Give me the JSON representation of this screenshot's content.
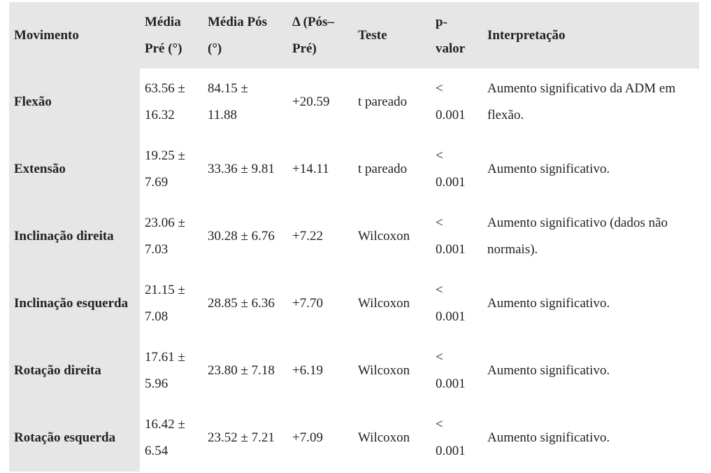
{
  "table": {
    "header": [
      "Movimento",
      "Média Pré (°)",
      "Média Pós (°)",
      "Δ (Pós–Pré)",
      "Teste",
      "p-valor",
      "Interpretação"
    ],
    "rows": [
      [
        "Flexão",
        "63.56 ± 16.32",
        "84.15 ± 11.88",
        "+20.59",
        "t pareado",
        "< 0.001",
        "Aumento significativo da ADM em flexão."
      ],
      [
        "Extensão",
        "19.25 ± 7.69",
        "33.36 ± 9.81",
        "+14.11",
        "t pareado",
        "< 0.001",
        "Aumento significativo."
      ],
      [
        "Inclinação direita",
        "23.06 ± 7.03",
        "30.28 ± 6.76",
        "+7.22",
        "Wilcoxon",
        "< 0.001",
        "Aumento significativo (dados não normais)."
      ],
      [
        "Inclinação esquerda",
        "21.15 ± 7.08",
        "28.85 ± 6.36",
        "+7.70",
        "Wilcoxon",
        "< 0.001",
        "Aumento significativo."
      ],
      [
        "Rotação direita",
        "17.61 ± 5.96",
        "23.80 ± 7.18",
        "+6.19",
        "Wilcoxon",
        "< 0.001",
        "Aumento significativo."
      ],
      [
        "Rotação esquerda",
        "16.42 ± 6.54",
        "23.52 ± 7.21",
        "+7.09",
        "Wilcoxon",
        "< 0.001",
        "Aumento significativo."
      ]
    ]
  }
}
